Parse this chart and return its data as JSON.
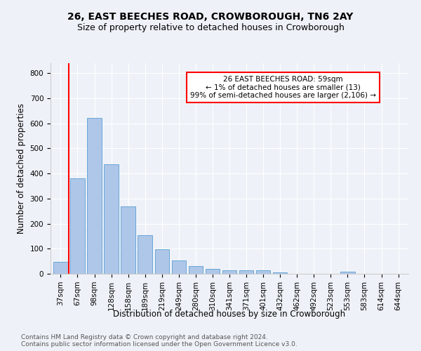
{
  "title": "26, EAST BEECHES ROAD, CROWBOROUGH, TN6 2AY",
  "subtitle": "Size of property relative to detached houses in Crowborough",
  "xlabel": "Distribution of detached houses by size in Crowborough",
  "ylabel": "Number of detached properties",
  "categories": [
    "37sqm",
    "67sqm",
    "98sqm",
    "128sqm",
    "158sqm",
    "189sqm",
    "219sqm",
    "249sqm",
    "280sqm",
    "310sqm",
    "341sqm",
    "371sqm",
    "401sqm",
    "432sqm",
    "462sqm",
    "492sqm",
    "523sqm",
    "553sqm",
    "583sqm",
    "614sqm",
    "644sqm"
  ],
  "values": [
    47,
    382,
    623,
    438,
    268,
    153,
    97,
    52,
    30,
    20,
    13,
    13,
    15,
    7,
    0,
    0,
    0,
    8,
    0,
    0,
    0
  ],
  "bar_color": "#aec6e8",
  "bar_edge_color": "#5a9fd4",
  "annotation_box_text": "26 EAST BEECHES ROAD: 59sqm\n← 1% of detached houses are smaller (13)\n99% of semi-detached houses are larger (2,106) →",
  "annotation_box_color": "white",
  "annotation_box_edge_color": "red",
  "vline_x_index": 0.5,
  "vline_color": "red",
  "ylim": [
    0,
    840
  ],
  "yticks": [
    0,
    100,
    200,
    300,
    400,
    500,
    600,
    700,
    800
  ],
  "footer_text": "Contains HM Land Registry data © Crown copyright and database right 2024.\nContains public sector information licensed under the Open Government Licence v3.0.",
  "bg_color": "#eef2f8",
  "title_fontsize": 10,
  "subtitle_fontsize": 9,
  "axis_label_fontsize": 8.5,
  "tick_fontsize": 7.5,
  "footer_fontsize": 6.5
}
